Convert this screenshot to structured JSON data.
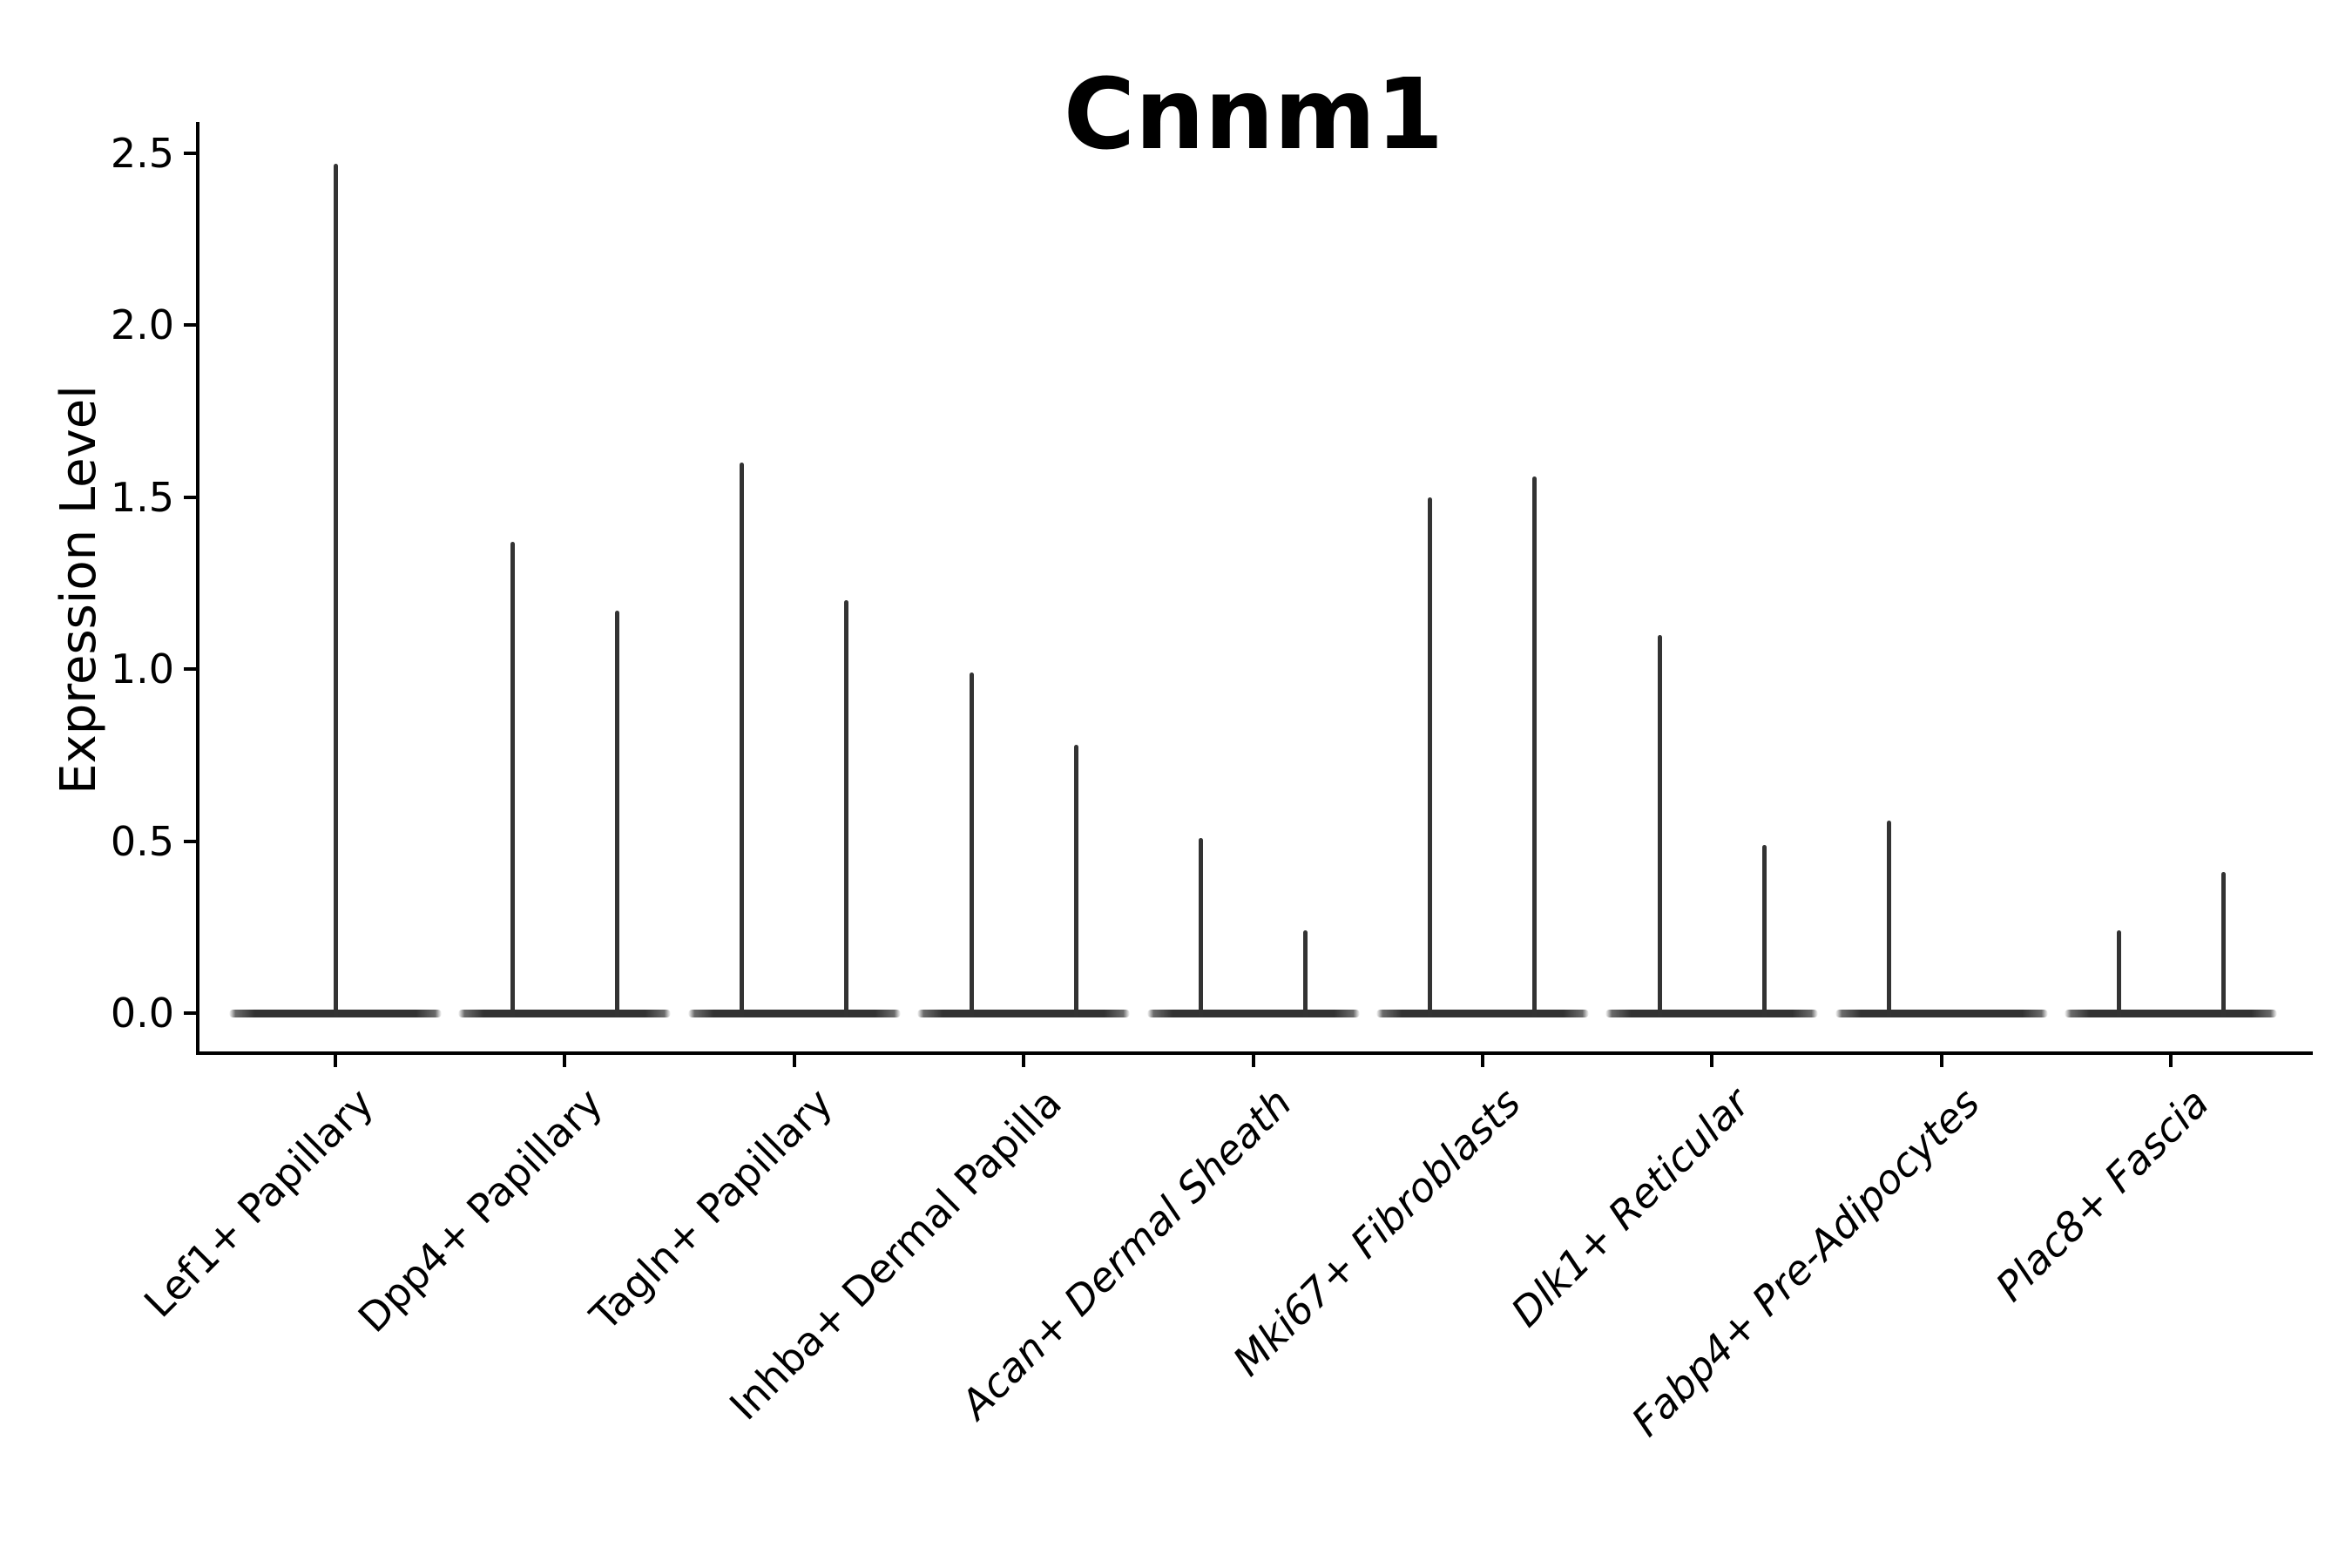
{
  "title": "Cnnm1",
  "chart_data": {
    "type": "violin",
    "title": "Cnnm1",
    "xlabel": "",
    "ylabel": "Expression Level",
    "ylim": [
      -0.12,
      2.62
    ],
    "yticks": [
      0.0,
      0.5,
      1.0,
      1.5,
      2.0,
      2.5
    ],
    "ytick_labels": [
      "0.0",
      "0.5",
      "1.0",
      "1.5",
      "2.0",
      "2.5"
    ],
    "grid": false,
    "legend": null,
    "baseline_value": 0.0,
    "description": "Expression of gene Cnnm1 per cell-type cluster; each category shows a flat violin body at 0 with thin density spikes reaching the maximum expression values.",
    "categories": [
      {
        "label": "Lef1+ Papillary",
        "italic": false,
        "violins": [
          {
            "position": "center",
            "max_expression": 2.47
          }
        ]
      },
      {
        "label": "Dpp4+ Papillary",
        "italic": false,
        "violins": [
          {
            "position": "left",
            "max_expression": 1.37
          },
          {
            "position": "right",
            "max_expression": 1.17
          }
        ]
      },
      {
        "label": "Tagln+ Papillary",
        "italic": false,
        "violins": [
          {
            "position": "left",
            "max_expression": 1.6
          },
          {
            "position": "right",
            "max_expression": 1.2
          }
        ]
      },
      {
        "label": "Inhba+ Dermal Papilla",
        "italic": false,
        "violins": [
          {
            "position": "left",
            "max_expression": 0.99
          },
          {
            "position": "right",
            "max_expression": 0.78
          }
        ]
      },
      {
        "label": "Acan+ Dermal Sheath",
        "italic": true,
        "violins": [
          {
            "position": "left",
            "max_expression": 0.51
          },
          {
            "position": "right",
            "max_expression": 0.24
          }
        ]
      },
      {
        "label": "Mki67+ Fibroblasts",
        "italic": true,
        "violins": [
          {
            "position": "left",
            "max_expression": 1.5
          },
          {
            "position": "right",
            "max_expression": 1.56
          }
        ]
      },
      {
        "label": "Dlk1+ Reticular",
        "italic": true,
        "violins": [
          {
            "position": "left",
            "max_expression": 1.1
          },
          {
            "position": "right",
            "max_expression": 0.49
          }
        ]
      },
      {
        "label": "Fabp4+ Pre-Adipocytes",
        "italic": true,
        "violins": [
          {
            "position": "left",
            "max_expression": 0.56
          }
        ]
      },
      {
        "label": "Plac8+ Fascia",
        "italic": true,
        "violins": [
          {
            "position": "left",
            "max_expression": 0.24
          },
          {
            "position": "right",
            "max_expression": 0.41
          }
        ]
      }
    ],
    "colors": {
      "violin": "#333333",
      "axis": "#000000",
      "text": "#000000",
      "background": "#ffffff"
    }
  }
}
